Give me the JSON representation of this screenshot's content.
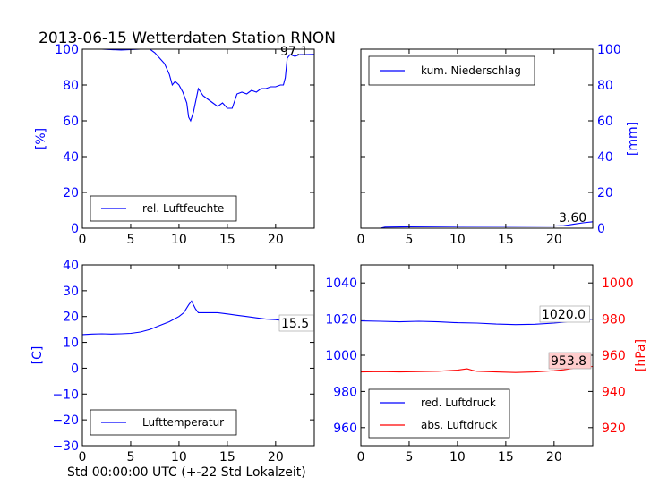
{
  "title": "2013-06-15 Wetterdaten Station RNON",
  "xlabel": "Std 00:00:00 UTC (+-22 Std Lokalzeit)",
  "colors": {
    "blue": "#0000ff",
    "red": "#ff0000",
    "annotation_bg": "#ffcccc"
  },
  "chart_data": [
    {
      "type": "line",
      "panel": "top-left",
      "ylabel": "[%]",
      "xlim": [
        0,
        24
      ],
      "ylim": [
        0,
        100
      ],
      "xticks": [
        0,
        5,
        10,
        15,
        20
      ],
      "yticks": [
        0,
        20,
        40,
        60,
        80,
        100
      ],
      "ytick_side": "left",
      "ytick_color": "#0000ff",
      "legend_position": "lower-left",
      "annotation": "97.1",
      "series": [
        {
          "name": "rel. Luftfeuchte",
          "color": "#0000ff",
          "x": [
            0,
            2,
            4,
            6,
            7,
            7.5,
            8,
            8.5,
            9,
            9.3,
            9.6,
            10,
            10.4,
            10.8,
            11,
            11.2,
            11.5,
            12,
            12.5,
            13,
            13.5,
            14,
            14.5,
            15,
            15.5,
            16,
            16.5,
            17,
            17.5,
            18,
            18.5,
            19,
            19.5,
            20,
            20.5,
            20.8,
            21,
            21.2,
            21.5,
            22,
            22.5,
            23,
            24
          ],
          "values": [
            100,
            100,
            99.5,
            100,
            100,
            98,
            95,
            92,
            86,
            80,
            82,
            80,
            76,
            70,
            62,
            60,
            65,
            78,
            74,
            72,
            70,
            68,
            70,
            67,
            67,
            75,
            76,
            75,
            77,
            76,
            78,
            78,
            79,
            79,
            80,
            80,
            84,
            95,
            97,
            96,
            97,
            97,
            97.1
          ]
        }
      ]
    },
    {
      "type": "line",
      "panel": "top-right",
      "ylabel": "[mm]",
      "xlim": [
        0,
        24
      ],
      "ylim": [
        0,
        100
      ],
      "xticks": [
        0,
        5,
        10,
        15,
        20
      ],
      "yticks": [
        0,
        20,
        40,
        60,
        80,
        100
      ],
      "ytick_side": "right",
      "ytick_color": "#0000ff",
      "legend_position": "upper-left",
      "annotation": "3.60",
      "series": [
        {
          "name": "kum. Niederschlag",
          "color": "#0000ff",
          "x": [
            0,
            2,
            2.5,
            5,
            10,
            15,
            20,
            21,
            22,
            23,
            24
          ],
          "values": [
            0,
            0,
            0.6,
            0.8,
            1.0,
            1.1,
            1.2,
            1.4,
            2.2,
            3.0,
            3.6
          ]
        }
      ]
    },
    {
      "type": "line",
      "panel": "bottom-left",
      "ylabel": "[C]",
      "xlim": [
        0,
        24
      ],
      "ylim": [
        -30,
        40
      ],
      "xticks": [
        0,
        5,
        10,
        15,
        20
      ],
      "yticks": [
        -30,
        -20,
        -10,
        0,
        10,
        20,
        30,
        40
      ],
      "ytick_side": "left",
      "ytick_color": "#0000ff",
      "legend_position": "lower-left",
      "annotation": "15.5",
      "series": [
        {
          "name": "Lufttemperatur",
          "color": "#0000ff",
          "x": [
            0,
            1,
            2,
            3,
            4,
            5,
            6,
            7,
            8,
            9,
            10,
            10.5,
            11,
            11.3,
            11.7,
            12,
            13,
            14,
            15,
            16,
            17,
            18,
            19,
            20,
            21,
            22,
            23,
            24
          ],
          "values": [
            13,
            13.2,
            13.3,
            13.2,
            13.3,
            13.5,
            14,
            15,
            16.5,
            18,
            20,
            21.5,
            24.5,
            26,
            23,
            21.5,
            21.5,
            21.5,
            21,
            20.5,
            20,
            19.5,
            19,
            18.8,
            18.3,
            17.5,
            16.5,
            15.5
          ]
        }
      ]
    },
    {
      "type": "line",
      "panel": "bottom-right",
      "ylabel": "[hPa]",
      "xlim": [
        0,
        24
      ],
      "ylim": [
        950,
        1050
      ],
      "ylim_right": [
        910,
        1010
      ],
      "xticks": [
        0,
        5,
        10,
        15,
        20
      ],
      "yticks": [
        960,
        980,
        1000,
        1020,
        1040
      ],
      "yticks_right": [
        920,
        940,
        960,
        980,
        1000
      ],
      "ytick_color": "#0000ff",
      "ytick_color_right": "#ff0000",
      "legend_position": "lower-left",
      "annotations": [
        "1020.0",
        "953.8"
      ],
      "series": [
        {
          "name": "red. Luftdruck",
          "color": "#0000ff",
          "axis": "left",
          "x": [
            0,
            2,
            4,
            6,
            8,
            10,
            12,
            14,
            16,
            18,
            20,
            21,
            22,
            23,
            24
          ],
          "values": [
            1019,
            1018.8,
            1018.5,
            1018.8,
            1018.5,
            1018,
            1017.8,
            1017.3,
            1017,
            1017.2,
            1017.8,
            1018.3,
            1019,
            1019.6,
            1020.0
          ]
        },
        {
          "name": "abs. Luftdruck",
          "color": "#ff0000",
          "axis": "right",
          "x": [
            0,
            2,
            4,
            6,
            8,
            10,
            11,
            11.5,
            12,
            14,
            16,
            18,
            20,
            21,
            22,
            23,
            24
          ],
          "values": [
            950.8,
            951,
            950.8,
            951,
            951.2,
            951.8,
            952.5,
            951.8,
            951.2,
            950.8,
            950.5,
            950.8,
            951.5,
            952,
            952.8,
            953.3,
            953.8
          ]
        }
      ]
    }
  ]
}
